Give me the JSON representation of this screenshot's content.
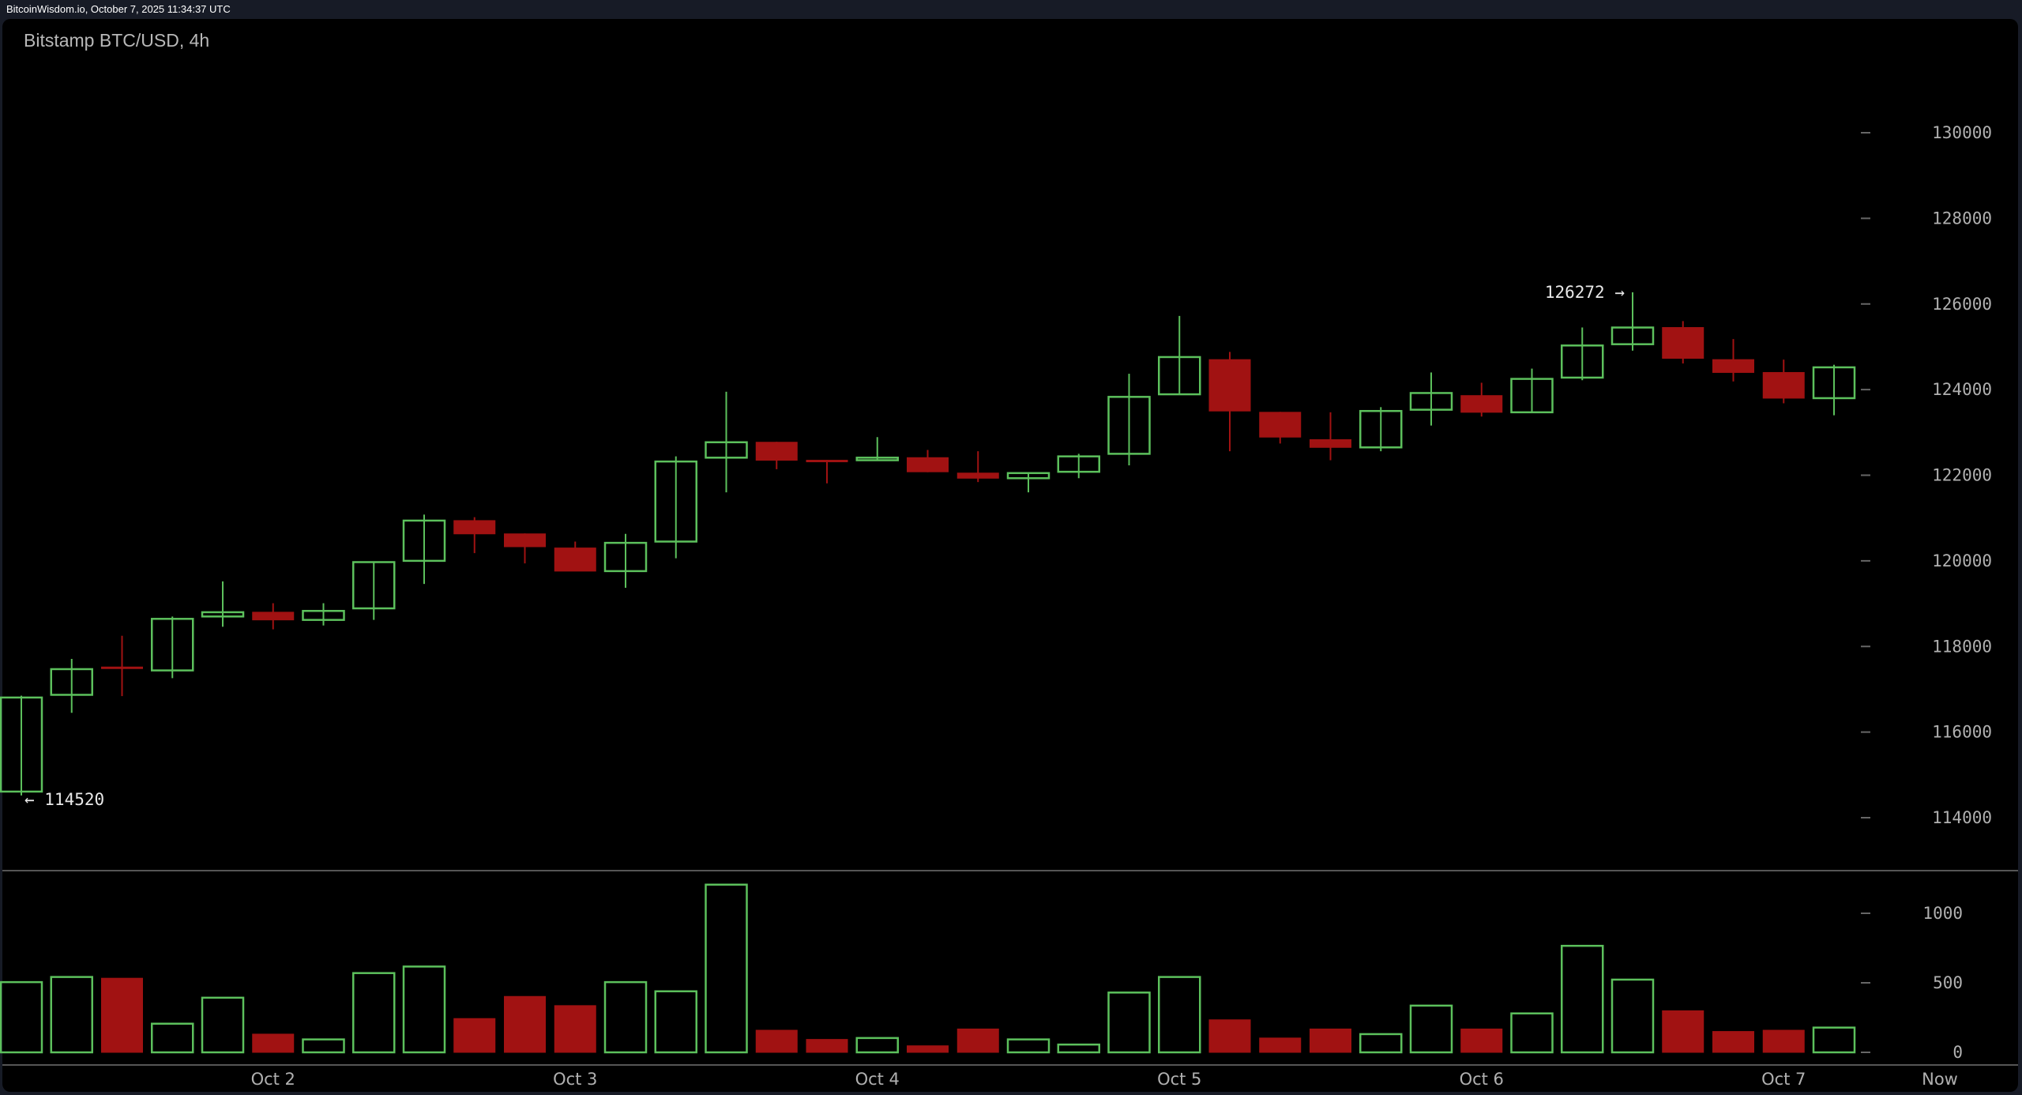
{
  "header": {
    "stamp": "BitcoinWisdom.io, October 7, 2025 11:34:37 UTC",
    "title": "Bitstamp BTC/USD, 4h"
  },
  "colors": {
    "up": "#5cc05c",
    "down": "#a11212",
    "background": "#000000",
    "frame": "#171b26"
  },
  "chart_data": {
    "type": "candlestick",
    "title": "Bitstamp BTC/USD, 4h",
    "interval": "4h",
    "price_ticks": [
      114000,
      116000,
      118000,
      120000,
      122000,
      124000,
      126000,
      128000,
      130000
    ],
    "volume_ticks": [
      0,
      500,
      1000
    ],
    "date_labels": [
      {
        "label": "Oct 2",
        "index": 5
      },
      {
        "label": "Oct 3",
        "index": 11
      },
      {
        "label": "Oct 4",
        "index": 17
      },
      {
        "label": "Oct 5",
        "index": 23
      },
      {
        "label": "Oct 6",
        "index": 29
      },
      {
        "label": "Oct 7",
        "index": 35
      },
      {
        "label": "Now",
        "index": 39
      }
    ],
    "annotations": {
      "high": {
        "value": 126272,
        "text": "126272 →",
        "index": 32
      },
      "low": {
        "value": 114520,
        "text": "← 114520",
        "index": 0
      }
    },
    "ylim": [
      113000,
      131000
    ],
    "volume_ylim": [
      0,
      1250
    ],
    "candles": [
      [
        114610,
        116850,
        114520,
        116807,
        505
      ],
      [
        116870,
        117710,
        116450,
        117470,
        542
      ],
      [
        117520,
        118250,
        116840,
        117490,
        533
      ],
      [
        117440,
        118700,
        117260,
        118645,
        206
      ],
      [
        118700,
        119520,
        118460,
        118800,
        393
      ],
      [
        118800,
        119010,
        118400,
        118620,
        131
      ],
      [
        118620,
        119010,
        118490,
        118830,
        93
      ],
      [
        118890,
        119970,
        118620,
        119970,
        570
      ],
      [
        120000,
        121080,
        119460,
        120940,
        617
      ],
      [
        120940,
        121020,
        120180,
        120630,
        243
      ],
      [
        120630,
        120640,
        119940,
        120330,
        402
      ],
      [
        120300,
        120450,
        119760,
        119760,
        336
      ],
      [
        119760,
        120630,
        119370,
        120420,
        505
      ],
      [
        120450,
        122440,
        120060,
        122320,
        439
      ],
      [
        122410,
        123950,
        121600,
        122770,
        1206
      ],
      [
        122770,
        122780,
        122140,
        122350,
        159
      ],
      [
        122350,
        122360,
        121810,
        122320,
        93
      ],
      [
        122350,
        122890,
        122340,
        122410,
        103
      ],
      [
        122410,
        122590,
        122070,
        122080,
        47
      ],
      [
        122050,
        122560,
        121840,
        121930,
        168
      ],
      [
        121930,
        122060,
        121600,
        122050,
        93
      ],
      [
        122080,
        122500,
        121930,
        122440,
        56
      ],
      [
        122500,
        124370,
        122230,
        123830,
        430
      ],
      [
        123890,
        125720,
        123880,
        124760,
        542
      ],
      [
        124700,
        124880,
        122560,
        123500,
        234
      ],
      [
        123470,
        123480,
        122740,
        122890,
        103
      ],
      [
        122830,
        123470,
        122350,
        122650,
        168
      ],
      [
        122650,
        123590,
        122560,
        123500,
        131
      ],
      [
        123530,
        124400,
        123160,
        123920,
        336
      ],
      [
        123860,
        124160,
        123370,
        123470,
        168
      ],
      [
        123470,
        124490,
        123460,
        124250,
        280
      ],
      [
        124280,
        125450,
        124220,
        125030,
        766
      ],
      [
        125060,
        126272,
        124910,
        125450,
        523
      ],
      [
        125450,
        125600,
        124610,
        124730,
        299
      ],
      [
        124700,
        125180,
        124190,
        124400,
        150
      ],
      [
        124400,
        124700,
        123680,
        123800,
        159
      ],
      [
        123800,
        124580,
        123400,
        124520,
        178
      ]
    ],
    "candle_fields": [
      "open",
      "high",
      "low",
      "close",
      "volume"
    ]
  }
}
